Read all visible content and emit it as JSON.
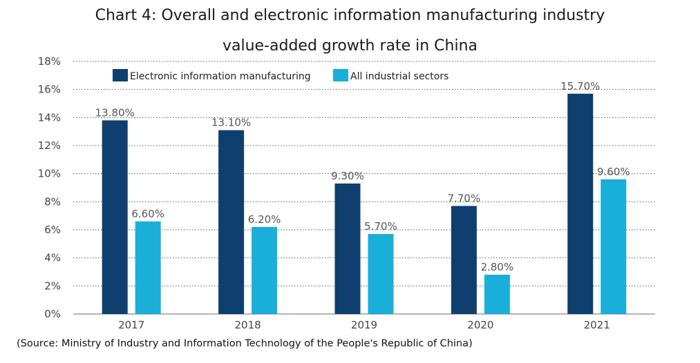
{
  "chart_data": {
    "type": "bar",
    "title_line1": "Chart 4: Overall and electronic information manufacturing industry",
    "title_line2": "value-added growth rate in China",
    "categories": [
      "2017",
      "2018",
      "2019",
      "2020",
      "2021"
    ],
    "series": [
      {
        "name": "Electronic information manufacturing",
        "color": "#0e3f6e",
        "values": [
          13.8,
          13.1,
          9.3,
          7.7,
          15.7
        ],
        "labels": [
          "13.80%",
          "13.10%",
          "9.30%",
          "7.70%",
          "15.70%"
        ]
      },
      {
        "name": "All industrial sectors",
        "color": "#19afd9",
        "values": [
          6.6,
          6.2,
          5.7,
          2.8,
          9.6
        ],
        "labels": [
          "6.60%",
          "6.20%",
          "5.70%",
          "2.80%",
          "9.60%"
        ]
      }
    ],
    "ylim": [
      0,
      18
    ],
    "yticks": [
      "0%",
      "2%",
      "4%",
      "6%",
      "8%",
      "10%",
      "12%",
      "14%",
      "16%",
      "18%"
    ],
    "gridlines": "dotted",
    "legend_position": "top-left"
  },
  "source": "(Source: Ministry of Industry and Information Technology of the People's Republic of China)"
}
